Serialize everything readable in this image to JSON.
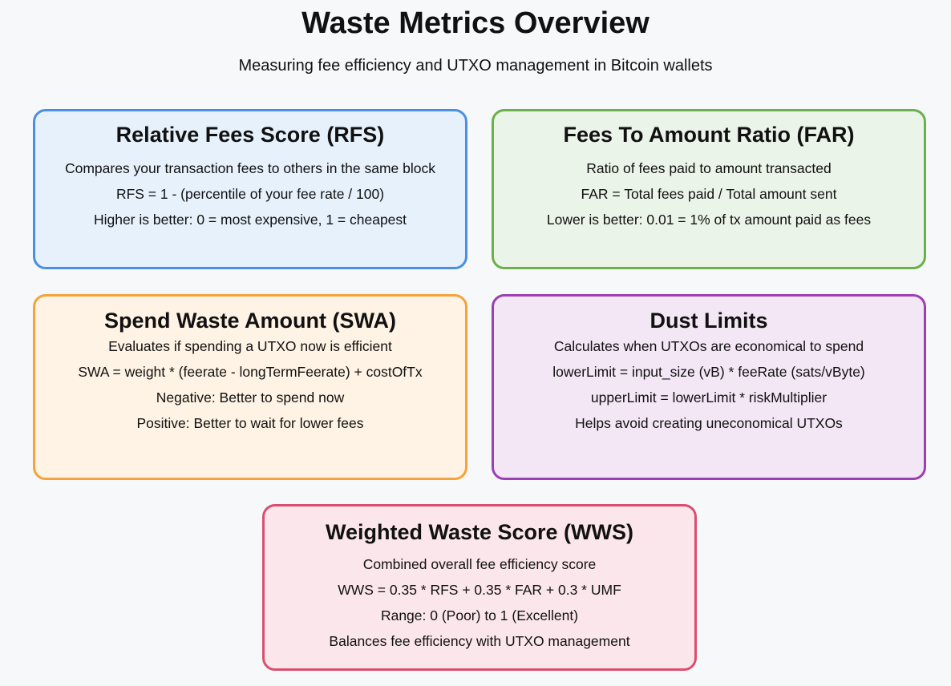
{
  "header": {
    "title": "Waste Metrics Overview",
    "subtitle": "Measuring fee efficiency and UTXO management in Bitcoin wallets"
  },
  "cards": {
    "rfs": {
      "title": "Relative Fees Score (RFS)",
      "lines": [
        "Compares your transaction fees to others in the same block",
        "RFS = 1 - (percentile of your fee rate / 100)",
        "Higher is better: 0 = most expensive, 1 = cheapest"
      ],
      "border_color": "#4a90e2",
      "fill_color": "#e6f1fc"
    },
    "far": {
      "title": "Fees To Amount Ratio (FAR)",
      "lines": [
        "Ratio of fees paid to amount transacted",
        "FAR = Total fees paid / Total amount sent",
        "Lower is better: 0.01 = 1% of tx amount paid as fees"
      ],
      "border_color": "#6ab04c",
      "fill_color": "#ebf4e8"
    },
    "swa": {
      "title": "Spend Waste Amount (SWA)",
      "lines": [
        "Evaluates if spending a UTXO now is efficient",
        "SWA = weight * (feerate - longTermFeerate) + costOfTx",
        "Negative: Better to spend now",
        "Positive: Better to wait for lower fees"
      ],
      "border_color": "#f5a33b",
      "fill_color": "#fef3e4"
    },
    "dust": {
      "title": "Dust Limits",
      "lines": [
        "Calculates when UTXOs are economical to spend",
        "lowerLimit = input_size (vB) * feeRate (sats/vByte)",
        "upperLimit = lowerLimit * riskMultiplier",
        "Helps avoid creating uneconomical UTXOs"
      ],
      "border_color": "#9b3fb5",
      "fill_color": "#f3e6f5"
    },
    "wws": {
      "title": "Weighted Waste Score (WWS)",
      "lines": [
        "Combined overall fee efficiency score",
        "WWS = 0.35 * RFS + 0.35 * FAR + 0.3 * UMF",
        "Range: 0 (Poor) to 1 (Excellent)",
        "Balances fee efficiency with UTXO management"
      ],
      "border_color": "#d94f6e",
      "fill_color": "#fbe6eb"
    }
  }
}
